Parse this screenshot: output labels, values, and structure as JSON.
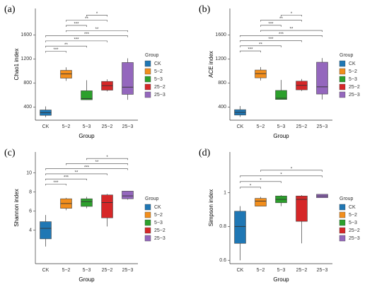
{
  "chart_data": [
    {
      "type": "box",
      "title": "(a)",
      "y_label": "Chao1 index",
      "x_label": "Group",
      "legend_title": "Group",
      "categories": [
        "CK",
        "5−2",
        "5−3",
        "25−2",
        "25−3"
      ],
      "colors": [
        "#1f77b4",
        "#f28e1c",
        "#2ca02c",
        "#d62728",
        "#9467bd"
      ],
      "boxes": [
        {
          "min": 230,
          "q1": 260,
          "median": 305,
          "q3": 350,
          "max": 410
        },
        {
          "min": 835,
          "q1": 880,
          "median": 950,
          "q3": 1010,
          "max": 1060
        },
        {
          "min": 520,
          "q1": 520,
          "median": 540,
          "q3": 670,
          "max": 845
        },
        {
          "min": 660,
          "q1": 680,
          "median": 755,
          "q3": 825,
          "max": 860
        },
        {
          "min": 520,
          "q1": 610,
          "median": 730,
          "q3": 1140,
          "max": 1210
        }
      ],
      "ylim": [
        180,
        2040
      ],
      "yticks": [
        400,
        800,
        1200,
        1600
      ],
      "comparisons": [
        {
          "groups": [
            "CK",
            "5−2"
          ],
          "label": "***"
        },
        {
          "groups": [
            "CK",
            "5−3"
          ],
          "label": "**"
        },
        {
          "groups": [
            "CK",
            "25−2"
          ],
          "label": "***"
        },
        {
          "groups": [
            "CK",
            "25−3"
          ],
          "label": "***"
        },
        {
          "groups": [
            "5−2",
            "25−3"
          ],
          "label": "**"
        },
        {
          "groups": [
            "5−2",
            "5−3"
          ],
          "label": "***"
        },
        {
          "groups": [
            "5−2",
            "25−2"
          ],
          "label": "**"
        },
        {
          "groups": [
            "5−3",
            "25−2"
          ],
          "label": "*"
        }
      ]
    },
    {
      "type": "box",
      "title": "(b)",
      "y_label": "ACE index",
      "x_label": "Group",
      "legend_title": "Group",
      "categories": [
        "CK",
        "5−2",
        "5−3",
        "25−2",
        "25−3"
      ],
      "colors": [
        "#1f77b4",
        "#f28e1c",
        "#2ca02c",
        "#d62728",
        "#9467bd"
      ],
      "boxes": [
        {
          "min": 235,
          "q1": 265,
          "median": 310,
          "q3": 355,
          "max": 415
        },
        {
          "min": 840,
          "q1": 885,
          "median": 955,
          "q3": 1015,
          "max": 1065
        },
        {
          "min": 525,
          "q1": 525,
          "median": 545,
          "q3": 675,
          "max": 850
        },
        {
          "min": 665,
          "q1": 685,
          "median": 760,
          "q3": 830,
          "max": 865
        },
        {
          "min": 525,
          "q1": 615,
          "median": 735,
          "q3": 1145,
          "max": 1215
        }
      ],
      "ylim": [
        180,
        2040
      ],
      "yticks": [
        400,
        800,
        1200,
        1600
      ],
      "comparisons": [
        {
          "groups": [
            "CK",
            "5−2"
          ],
          "label": "***"
        },
        {
          "groups": [
            "CK",
            "5−3"
          ],
          "label": "**"
        },
        {
          "groups": [
            "CK",
            "25−2"
          ],
          "label": "***"
        },
        {
          "groups": [
            "CK",
            "25−3"
          ],
          "label": "***"
        },
        {
          "groups": [
            "5−2",
            "25−3"
          ],
          "label": "**"
        },
        {
          "groups": [
            "5−2",
            "5−3"
          ],
          "label": "***"
        },
        {
          "groups": [
            "5−2",
            "25−2"
          ],
          "label": "**"
        },
        {
          "groups": [
            "5−3",
            "25−2"
          ],
          "label": "*"
        }
      ]
    },
    {
      "type": "box",
      "title": "(c)",
      "y_label": "Shannon index",
      "x_label": "Group",
      "legend_title": "Group",
      "categories": [
        "CK",
        "5−2",
        "5−3",
        "25−2",
        "25−3"
      ],
      "colors": [
        "#1f77b4",
        "#f28e1c",
        "#2ca02c",
        "#d62728",
        "#9467bd"
      ],
      "boxes": [
        {
          "min": 2.3,
          "q1": 3.1,
          "median": 4.2,
          "q3": 4.9,
          "max": 5.6
        },
        {
          "min": 6.1,
          "q1": 6.3,
          "median": 6.8,
          "q3": 7.3,
          "max": 7.4
        },
        {
          "min": 6.3,
          "q1": 6.5,
          "median": 7.0,
          "q3": 7.3,
          "max": 7.5
        },
        {
          "min": 4.4,
          "q1": 5.3,
          "median": 6.9,
          "q3": 7.7,
          "max": 7.8
        },
        {
          "min": 7.2,
          "q1": 7.3,
          "median": 7.6,
          "q3": 8.1,
          "max": 8.1
        }
      ],
      "ylim": [
        0.5,
        12.2
      ],
      "yticks": [
        4,
        6,
        8,
        10
      ],
      "comparisons": [
        {
          "groups": [
            "CK",
            "5−2"
          ],
          "label": "***"
        },
        {
          "groups": [
            "CK",
            "5−3"
          ],
          "label": "***"
        },
        {
          "groups": [
            "CK",
            "25−2"
          ],
          "label": "**"
        },
        {
          "groups": [
            "CK",
            "25−3"
          ],
          "label": "***"
        },
        {
          "groups": [
            "5−2",
            "25−3"
          ],
          "label": "**"
        },
        {
          "groups": [
            "5−3",
            "25−3"
          ],
          "label": "*"
        }
      ]
    },
    {
      "type": "box",
      "title": "(d)",
      "y_label": "Simpson index",
      "x_label": "Group",
      "legend_title": "Group",
      "categories": [
        "CK",
        "5−2",
        "5−3",
        "25−2",
        "25−3"
      ],
      "colors": [
        "#1f77b4",
        "#f28e1c",
        "#2ca02c",
        "#d62728",
        "#9467bd"
      ],
      "boxes": [
        {
          "min": 0.6,
          "q1": 0.7,
          "median": 0.8,
          "q3": 0.89,
          "max": 0.92
        },
        {
          "min": 0.92,
          "q1": 0.92,
          "median": 0.95,
          "q3": 0.966,
          "max": 0.975
        },
        {
          "min": 0.92,
          "q1": 0.94,
          "median": 0.96,
          "q3": 0.98,
          "max": 0.985
        },
        {
          "min": 0.7,
          "q1": 0.83,
          "median": 0.96,
          "q3": 0.98,
          "max": 0.985
        },
        {
          "min": 0.97,
          "q1": 0.97,
          "median": 0.98,
          "q3": 0.99,
          "max": 0.99
        }
      ],
      "ylim": [
        0.58,
        1.24
      ],
      "yticks": [
        0.6,
        0.8,
        1
      ],
      "comparisons": [
        {
          "groups": [
            "CK",
            "5−2"
          ],
          "label": "*"
        },
        {
          "groups": [
            "CK",
            "5−3"
          ],
          "label": "*"
        },
        {
          "groups": [
            "CK",
            "25−3"
          ],
          "label": "*"
        },
        {
          "groups": [
            "5−2",
            "25−3"
          ],
          "label": "*"
        }
      ]
    }
  ]
}
